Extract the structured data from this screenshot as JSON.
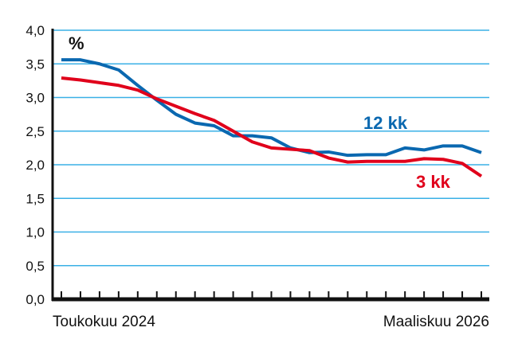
{
  "chart_data": {
    "type": "line",
    "title": "",
    "unit_label": "%",
    "xlabel": "",
    "ylabel": "",
    "ylim": [
      0,
      4.0
    ],
    "yticks": [
      "0,0",
      "0,5",
      "1,0",
      "1,5",
      "2,0",
      "2,5",
      "3,0",
      "3,5",
      "4,0"
    ],
    "grid": true,
    "x_tick_labels": {
      "first": "Toukokuu 2024",
      "last": "Maaliskuu 2026"
    },
    "x": [
      "2024-05",
      "2024-06",
      "2024-07",
      "2024-08",
      "2024-09",
      "2024-10",
      "2024-11",
      "2024-12",
      "2025-01",
      "2025-02",
      "2025-03",
      "2025-04",
      "2025-05",
      "2025-06",
      "2025-07",
      "2025-08",
      "2025-09",
      "2025-10",
      "2025-11",
      "2025-12",
      "2026-01",
      "2026-02",
      "2026-03"
    ],
    "series": [
      {
        "name": "12 kk",
        "color": "#0a68b0",
        "values": [
          3.56,
          3.56,
          3.5,
          3.41,
          3.18,
          2.96,
          2.75,
          2.62,
          2.58,
          2.43,
          2.43,
          2.4,
          2.25,
          2.18,
          2.19,
          2.14,
          2.15,
          2.15,
          2.25,
          2.22,
          2.28,
          2.28,
          2.18
        ]
      },
      {
        "name": "3 kk",
        "color": "#e0001b",
        "values": [
          3.29,
          3.26,
          3.22,
          3.18,
          3.11,
          2.98,
          2.87,
          2.76,
          2.66,
          2.5,
          2.34,
          2.25,
          2.23,
          2.21,
          2.1,
          2.04,
          2.05,
          2.05,
          2.05,
          2.09,
          2.08,
          2.02,
          1.83
        ]
      }
    ],
    "grid_color": "#3ab0e6"
  }
}
